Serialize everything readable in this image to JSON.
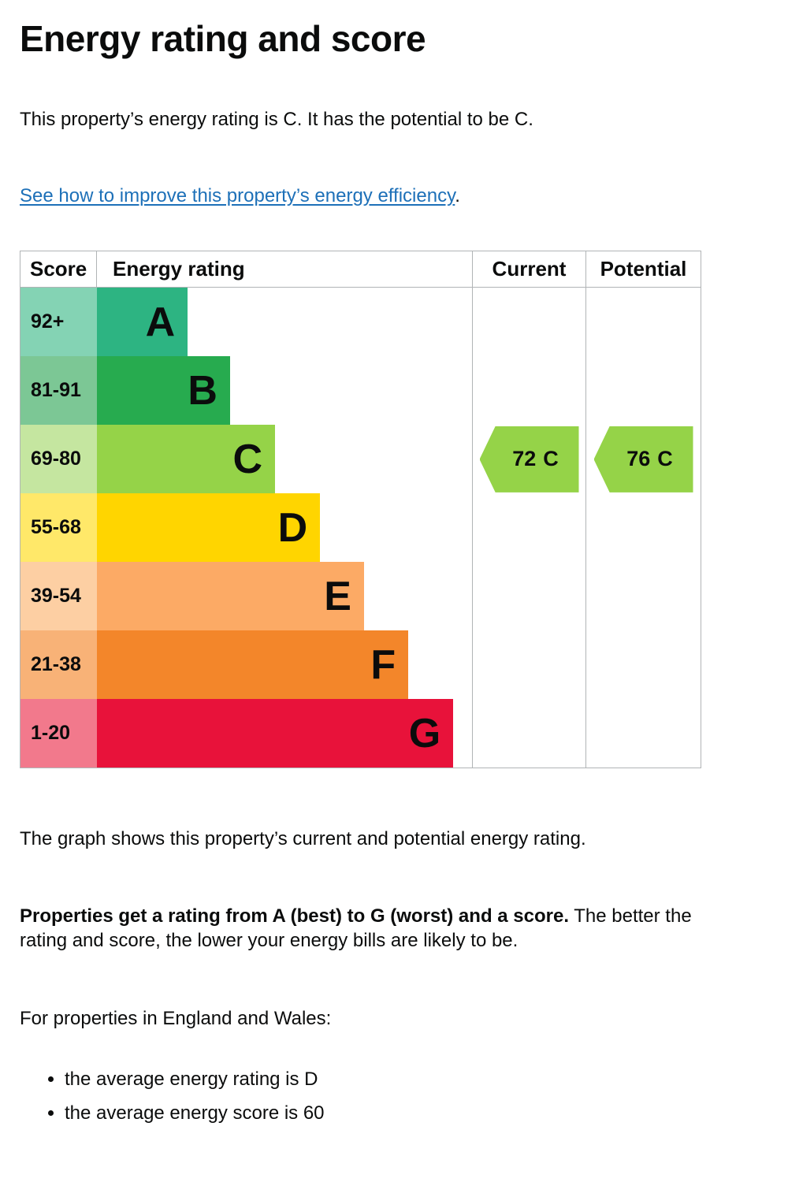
{
  "page": {
    "title": "Energy rating and score",
    "intro": "This property’s energy rating is C. It has the potential to be C.",
    "improve_link": "See how to improve this property’s energy efficiency",
    "improve_suffix": ".",
    "graph_caption": "The graph shows this property’s current and potential energy rating.",
    "rating_explainer_bold": "Properties get a rating from A (best) to G (worst) and a score.",
    "rating_explainer_rest": " The better the rating and score, the lower your energy bills are likely to be.",
    "regions_heading": "For properties in England and Wales:",
    "bullets": [
      "the average energy rating is D",
      "the average energy score is 60"
    ]
  },
  "chart": {
    "headers": {
      "score": "Score",
      "rating": "Energy rating",
      "current": "Current",
      "potential": "Potential"
    },
    "bands": [
      {
        "score": "92+",
        "letter": "A",
        "bar_color": "#2db482",
        "score_bg": "#84d3b4",
        "width_pct": 24.2
      },
      {
        "score": "81-91",
        "letter": "B",
        "bar_color": "#27ab4f",
        "score_bg": "#7cc795",
        "width_pct": 35.5
      },
      {
        "score": "69-80",
        "letter": "C",
        "bar_color": "#95d348",
        "score_bg": "#c5e6a0",
        "width_pct": 47.5
      },
      {
        "score": "55-68",
        "letter": "D",
        "bar_color": "#ffd500",
        "score_bg": "#ffe869",
        "width_pct": 59.5
      },
      {
        "score": "39-54",
        "letter": "E",
        "bar_color": "#fcaa65",
        "score_bg": "#fdcfa3",
        "width_pct": 71.2
      },
      {
        "score": "21-38",
        "letter": "F",
        "bar_color": "#f3862a",
        "score_bg": "#f8b277",
        "width_pct": 83.0
      },
      {
        "score": "1-20",
        "letter": "G",
        "bar_color": "#e8123a",
        "score_bg": "#f2798c",
        "width_pct": 95.0
      }
    ],
    "current": {
      "value": "72",
      "letter": "C",
      "arrow_color": "#95d348"
    },
    "potential": {
      "value": "76",
      "letter": "C",
      "arrow_color": "#95d348"
    }
  },
  "chart_data": {
    "type": "bar",
    "title": "Energy rating and score",
    "categories": [
      "A",
      "B",
      "C",
      "D",
      "E",
      "F",
      "G"
    ],
    "score_ranges": [
      "92+",
      "81-91",
      "69-80",
      "55-68",
      "39-54",
      "21-38",
      "1-20"
    ],
    "band_colors": [
      "#2db482",
      "#27ab4f",
      "#95d348",
      "#ffd500",
      "#fcaa65",
      "#f3862a",
      "#e8123a"
    ],
    "bar_lengths_pct": [
      24.2,
      35.5,
      47.5,
      59.5,
      71.2,
      83.0,
      95.0
    ],
    "current": {
      "score": 72,
      "rating": "C"
    },
    "potential": {
      "score": 76,
      "rating": "C"
    },
    "average_rating_england_wales": "D",
    "average_score_england_wales": 60,
    "legend_position": "none",
    "grid": false
  }
}
